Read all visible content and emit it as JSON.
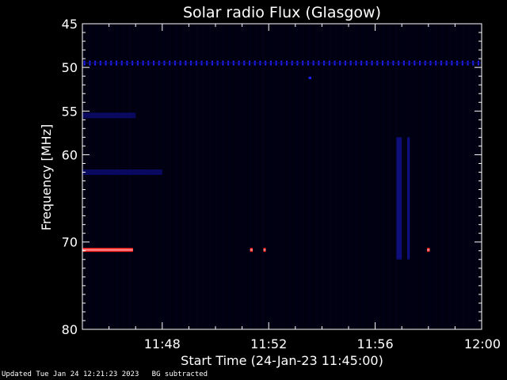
{
  "chart_data": {
    "type": "heatmap",
    "title": "Solar radio Flux (Glasgow)",
    "xlabel": "Start Time (24-Jan-23 11:45:00)",
    "ylabel": "Frequency [MHz]",
    "x_unit": "minutes after 11:45:00",
    "xlim": [
      0,
      15
    ],
    "ylim": [
      45,
      80
    ],
    "y_reversed": true,
    "x_ticks": [
      {
        "value": 3,
        "label": "11:48"
      },
      {
        "value": 7,
        "label": "11:52"
      },
      {
        "value": 11,
        "label": "11:56"
      },
      {
        "value": 15,
        "label": "12:00"
      }
    ],
    "y_ticks": [
      {
        "value": 45,
        "label": "45"
      },
      {
        "value": 50,
        "label": "50"
      },
      {
        "value": 55,
        "label": "55"
      },
      {
        "value": 60,
        "label": "60"
      },
      {
        "value": 70,
        "label": "70"
      },
      {
        "value": 80,
        "label": "80"
      }
    ],
    "background_color": "#000010",
    "colors": {
      "weak": "#1010a0",
      "medium": "#2020ff",
      "strong": "#ff2020"
    },
    "features": [
      {
        "name": "interference line",
        "freq_mhz": 49.5,
        "t_start": 0,
        "t_end": 15,
        "level": "medium"
      },
      {
        "name": "band",
        "freq_mhz": 55.5,
        "t_start": 0,
        "t_end": 2,
        "level": "weak"
      },
      {
        "name": "band",
        "freq_mhz": 62,
        "t_start": 0,
        "t_end": 3,
        "level": "weak"
      },
      {
        "name": "strong emission",
        "freq_mhz": 70.9,
        "t_start": 0,
        "t_end": 1.9,
        "level": "strong"
      },
      {
        "name": "spike",
        "freq_mhz": 70.9,
        "t_start": 6.3,
        "t_end": 6.4,
        "level": "strong"
      },
      {
        "name": "spike",
        "freq_mhz": 70.9,
        "t_start": 6.8,
        "t_end": 6.85,
        "level": "strong"
      },
      {
        "name": "spike",
        "freq_mhz": 70.9,
        "t_start": 12.95,
        "t_end": 13.05,
        "level": "strong"
      },
      {
        "name": "spike",
        "freq_mhz": 51.2,
        "t_start": 8.5,
        "t_end": 8.6,
        "level": "medium"
      },
      {
        "name": "burst streak",
        "freq_mhz": 66,
        "t_start": 11.8,
        "t_end": 12.0,
        "level": "medium"
      },
      {
        "name": "burst streak",
        "freq_mhz": 66,
        "t_start": 12.2,
        "t_end": 12.3,
        "level": "medium"
      }
    ]
  },
  "footer": {
    "updated": "Updated Tue Jan 24 12:21:23 2023",
    "bg_note": "BG subtracted"
  }
}
